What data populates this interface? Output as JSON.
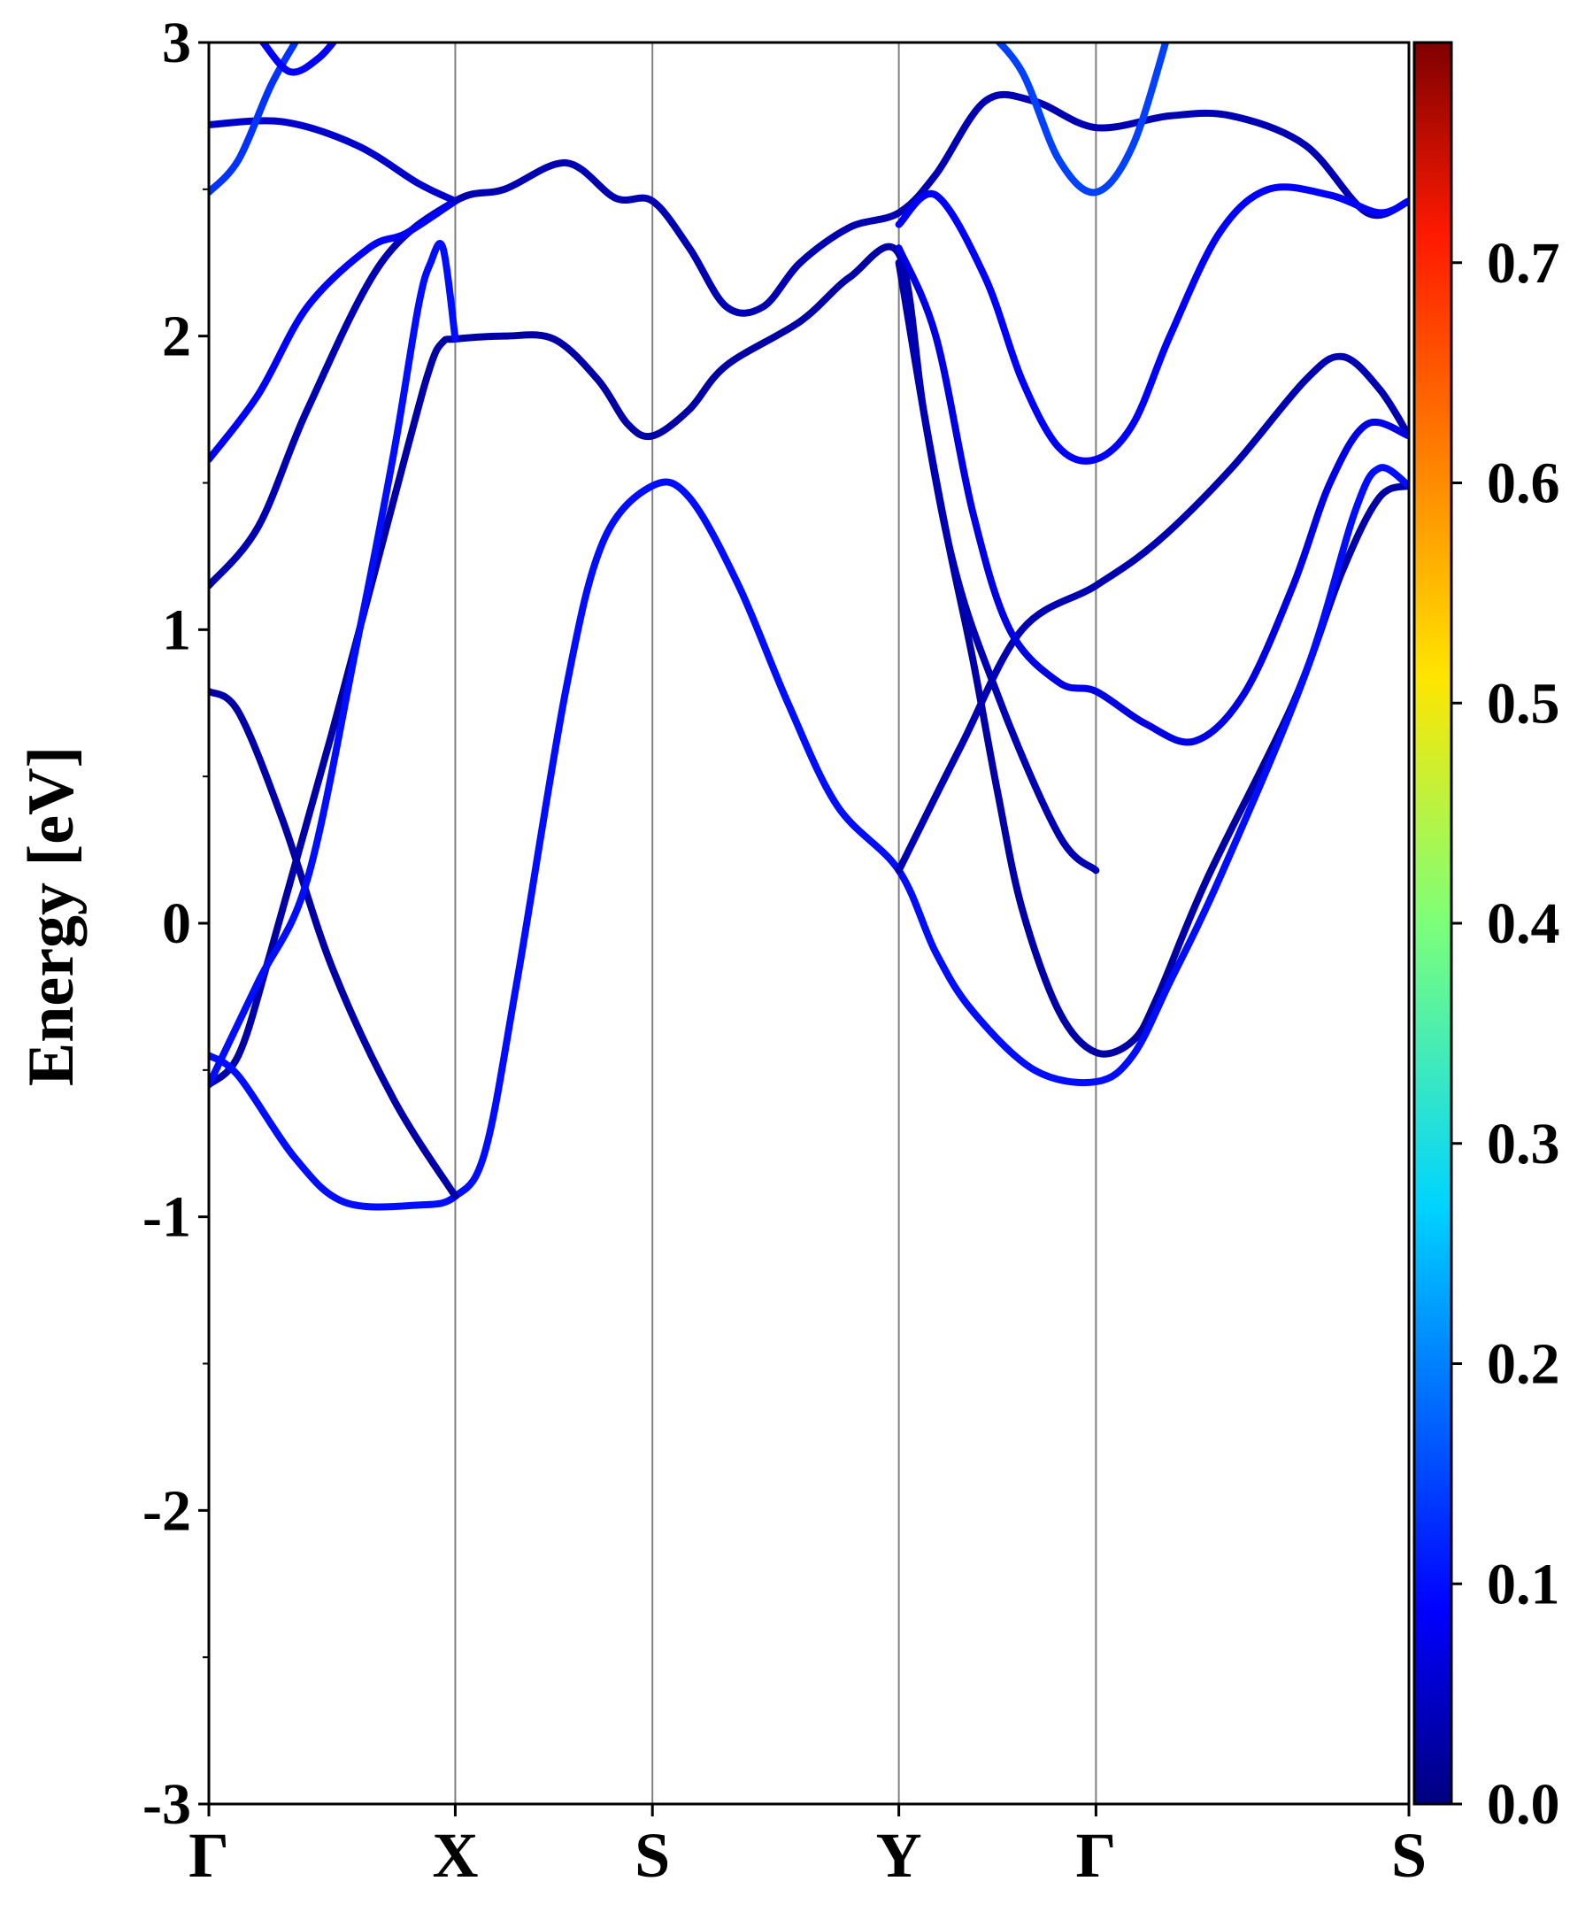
{
  "chart_data": {
    "type": "line",
    "title": "",
    "ylabel": "Energy [eV]",
    "xlabel": "",
    "ylim": [
      -3,
      3
    ],
    "yticks": [
      "-3",
      "-2",
      "-1",
      "0",
      "1",
      "2",
      "3"
    ],
    "kpath": {
      "labels": [
        "Γ",
        "X",
        "S",
        "Y",
        "Γ",
        "S"
      ],
      "positions": [
        0,
        1,
        1.8,
        2.8,
        3.6,
        4.87
      ]
    },
    "grid": false,
    "colorbar": {
      "colormap": "jet",
      "range": [
        0.0,
        0.8
      ],
      "ticks": [
        "0.0",
        "0.1",
        "0.2",
        "0.3",
        "0.4",
        "0.5",
        "0.6",
        "0.7"
      ]
    },
    "series": [
      {
        "weight": 0.03,
        "points": [
          [
            0,
            -0.55
          ],
          [
            0.12,
            -0.45
          ],
          [
            0.25,
            -0.1
          ],
          [
            0.5,
            0.65
          ],
          [
            0.8,
            1.6
          ],
          [
            0.9,
            1.9
          ],
          [
            0.95,
            1.98
          ],
          [
            1,
            1.99
          ],
          [
            1.2,
            2.0
          ],
          [
            1.4,
            1.99
          ],
          [
            1.58,
            1.85
          ],
          [
            1.7,
            1.7
          ],
          [
            1.8,
            1.66
          ],
          [
            1.95,
            1.75
          ],
          [
            2.1,
            1.9
          ],
          [
            2.4,
            2.05
          ],
          [
            2.6,
            2.2
          ],
          [
            2.8,
            2.28
          ],
          [
            2.9,
            1.75
          ],
          [
            3.0,
            1.3
          ],
          [
            3.1,
            0.9
          ],
          [
            3.2,
            0.45
          ],
          [
            3.3,
            0.05
          ],
          [
            3.45,
            -0.3
          ],
          [
            3.6,
            -0.44
          ],
          [
            3.75,
            -0.4
          ],
          [
            3.85,
            -0.25
          ],
          [
            4.05,
            0.15
          ],
          [
            4.4,
            0.75
          ],
          [
            4.6,
            1.2
          ],
          [
            4.75,
            1.45
          ],
          [
            4.87,
            1.49
          ]
        ]
      },
      {
        "weight": 0.11,
        "points": [
          [
            0,
            -0.45
          ],
          [
            0.12,
            -0.52
          ],
          [
            0.35,
            -0.8
          ],
          [
            0.55,
            -0.95
          ],
          [
            0.85,
            -0.96
          ],
          [
            1,
            -0.93
          ],
          [
            1.12,
            -0.78
          ],
          [
            1.25,
            -0.2
          ],
          [
            1.45,
            0.8
          ],
          [
            1.6,
            1.3
          ],
          [
            1.8,
            1.49
          ],
          [
            1.95,
            1.45
          ],
          [
            2.15,
            1.15
          ],
          [
            2.35,
            0.75
          ],
          [
            2.55,
            0.4
          ],
          [
            2.8,
            0.18
          ],
          [
            2.95,
            -0.1
          ],
          [
            3.1,
            -0.3
          ],
          [
            3.35,
            -0.5
          ],
          [
            3.6,
            -0.54
          ],
          [
            3.75,
            -0.45
          ],
          [
            3.9,
            -0.2
          ],
          [
            4.1,
            0.15
          ],
          [
            4.45,
            0.85
          ],
          [
            4.65,
            1.4
          ],
          [
            4.75,
            1.55
          ],
          [
            4.87,
            1.49
          ]
        ]
      },
      {
        "weight": 0.03,
        "points": [
          [
            0,
            0.79
          ],
          [
            0.12,
            0.72
          ],
          [
            0.3,
            0.35
          ],
          [
            0.5,
            -0.15
          ],
          [
            0.75,
            -0.6
          ],
          [
            1,
            -0.93
          ]
        ]
      },
      {
        "weight": 0.11,
        "points": [
          [
            0,
            -0.55
          ],
          [
            0.2,
            -0.2
          ],
          [
            0.4,
            0.15
          ],
          [
            0.6,
            0.95
          ],
          [
            0.75,
            1.6
          ],
          [
            0.85,
            2.1
          ],
          [
            0.9,
            2.25
          ],
          [
            0.95,
            2.3
          ],
          [
            1,
            1.99
          ]
        ]
      },
      {
        "weight": 0.04,
        "points": [
          [
            0,
            1.15
          ],
          [
            0.2,
            1.35
          ],
          [
            0.4,
            1.75
          ],
          [
            0.7,
            2.25
          ],
          [
            1,
            2.46
          ],
          [
            1.2,
            2.5
          ],
          [
            1.45,
            2.59
          ],
          [
            1.65,
            2.47
          ],
          [
            1.8,
            2.46
          ],
          [
            1.95,
            2.3
          ],
          [
            2.1,
            2.1
          ],
          [
            2.25,
            2.1
          ],
          [
            2.4,
            2.25
          ],
          [
            2.6,
            2.37
          ],
          [
            2.8,
            2.42
          ],
          [
            2.95,
            2.55
          ],
          [
            3.15,
            2.8
          ],
          [
            3.35,
            2.8
          ],
          [
            3.6,
            2.71
          ],
          [
            3.9,
            2.75
          ],
          [
            4.15,
            2.75
          ],
          [
            4.45,
            2.65
          ],
          [
            4.7,
            2.42
          ],
          [
            4.87,
            2.46
          ]
        ]
      },
      {
        "weight": 0.1,
        "points": [
          [
            0,
            1.58
          ],
          [
            0.2,
            1.8
          ],
          [
            0.4,
            2.1
          ],
          [
            0.65,
            2.3
          ],
          [
            0.8,
            2.35
          ],
          [
            1,
            2.46
          ]
        ]
      },
      {
        "weight": 0.06,
        "points": [
          [
            0,
            2.72
          ],
          [
            0.3,
            2.73
          ],
          [
            0.6,
            2.65
          ],
          [
            0.85,
            2.52
          ],
          [
            1,
            2.46
          ]
        ]
      },
      {
        "weight": 0.14,
        "points": [
          [
            0,
            2.49
          ],
          [
            0.12,
            2.6
          ],
          [
            0.25,
            2.85
          ],
          [
            0.35,
            3.0
          ]
        ]
      },
      {
        "weight": 0.1,
        "points": [
          [
            0.22,
            3.0
          ],
          [
            0.33,
            2.9
          ],
          [
            0.45,
            2.95
          ],
          [
            0.55,
            3.05
          ]
        ]
      },
      {
        "weight": 0.04,
        "points": [
          [
            2.8,
            2.25
          ],
          [
            3.0,
            1.3
          ],
          [
            3.2,
            0.78
          ],
          [
            3.45,
            0.3
          ],
          [
            3.6,
            0.18
          ]
        ]
      },
      {
        "weight": 0.04,
        "points": [
          [
            2.8,
            0.18
          ],
          [
            3.05,
            0.6
          ],
          [
            3.3,
            1.0
          ],
          [
            3.6,
            1.15
          ],
          [
            3.85,
            1.3
          ],
          [
            4.15,
            1.55
          ],
          [
            4.45,
            1.85
          ],
          [
            4.6,
            1.93
          ],
          [
            4.75,
            1.82
          ],
          [
            4.87,
            1.66
          ]
        ]
      },
      {
        "weight": 0.1,
        "points": [
          [
            2.8,
            2.38
          ],
          [
            2.95,
            2.48
          ],
          [
            3.15,
            2.2
          ],
          [
            3.3,
            1.85
          ],
          [
            3.45,
            1.62
          ],
          [
            3.6,
            1.58
          ],
          [
            3.75,
            1.7
          ],
          [
            3.9,
            2.0
          ],
          [
            4.1,
            2.35
          ],
          [
            4.3,
            2.5
          ],
          [
            4.55,
            2.48
          ],
          [
            4.75,
            2.42
          ],
          [
            4.87,
            2.46
          ]
        ]
      },
      {
        "weight": 0.08,
        "points": [
          [
            2.8,
            2.3
          ],
          [
            2.95,
            2.0
          ],
          [
            3.1,
            1.4
          ],
          [
            3.25,
            1.0
          ],
          [
            3.45,
            0.82
          ],
          [
            3.6,
            0.79
          ],
          [
            3.8,
            0.68
          ],
          [
            4.0,
            0.62
          ],
          [
            4.2,
            0.78
          ],
          [
            4.4,
            1.15
          ],
          [
            4.55,
            1.5
          ],
          [
            4.7,
            1.7
          ],
          [
            4.87,
            1.66
          ]
        ]
      },
      {
        "weight": 0.15,
        "points": [
          [
            3.15,
            3.05
          ],
          [
            3.3,
            2.9
          ],
          [
            3.45,
            2.6
          ],
          [
            3.6,
            2.49
          ],
          [
            3.75,
            2.65
          ],
          [
            3.9,
            3.05
          ]
        ]
      }
    ]
  }
}
